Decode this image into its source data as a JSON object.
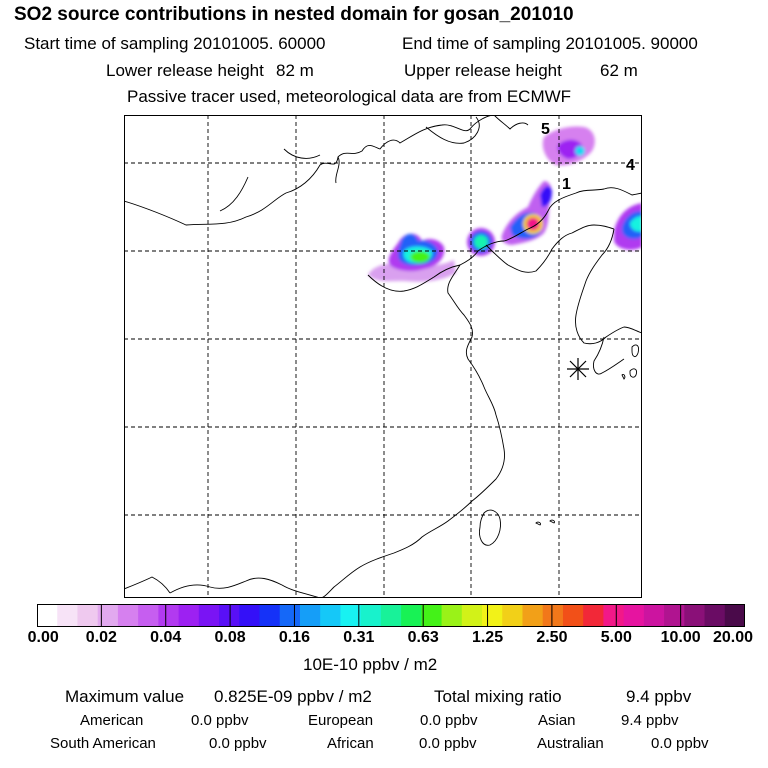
{
  "header": {
    "title": "SO2 source contributions in nested domain for gosan_201010",
    "start_label": "Start time of sampling 20101005. 60000",
    "end_label": "End time of sampling 20101005. 90000",
    "lower_label": "Lower release height",
    "lower_value": "82 m",
    "upper_label": "Upper release height",
    "upper_value": "62 m",
    "tracer_note": "Passive tracer used, meteorological data are from ECMWF"
  },
  "map": {
    "receptor_marker": "asterisk-station-icon",
    "labels": [
      "5",
      "4",
      "1"
    ]
  },
  "legend": {
    "colors": [
      "#ffffff",
      "#f7e3f7",
      "#efc9ef",
      "#e2a9ef",
      "#d680ef",
      "#c65ef0",
      "#b23af0",
      "#9d21f2",
      "#7a14f4",
      "#5910f6",
      "#3410f8",
      "#1532f8",
      "#1568f8",
      "#159ef8",
      "#15c8f8",
      "#18f2f2",
      "#18f2cc",
      "#18f299",
      "#18f255",
      "#44f218",
      "#9af218",
      "#d2f218",
      "#f2f218",
      "#f2d018",
      "#f2a018",
      "#f2781a",
      "#f25018",
      "#f22838",
      "#f21888",
      "#e614a0",
      "#cc14a0",
      "#b01490",
      "#8a1078",
      "#6a0c64",
      "#4a0a4a"
    ],
    "ticks": [
      "0.00",
      "0.02",
      "0.04",
      "0.08",
      "0.16",
      "0.31",
      "0.63",
      "1.25",
      "2.50",
      "5.00",
      "10.00",
      "20.00"
    ],
    "unit": "10E-10 ppbv / m2"
  },
  "summary": {
    "max_label": "Maximum value",
    "max_value": "0.825E-09 ppbv / m2",
    "total_label": "Total mixing ratio",
    "total_value": "9.4 ppbv",
    "regions": [
      {
        "name": "American",
        "value": "0.0 ppbv"
      },
      {
        "name": "European",
        "value": "0.0 ppbv"
      },
      {
        "name": "Asian",
        "value": "9.4 ppbv"
      },
      {
        "name": "South American",
        "value": "0.0 ppbv"
      },
      {
        "name": "African",
        "value": "0.0 ppbv"
      },
      {
        "name": "Australian",
        "value": "0.0 ppbv"
      }
    ]
  }
}
